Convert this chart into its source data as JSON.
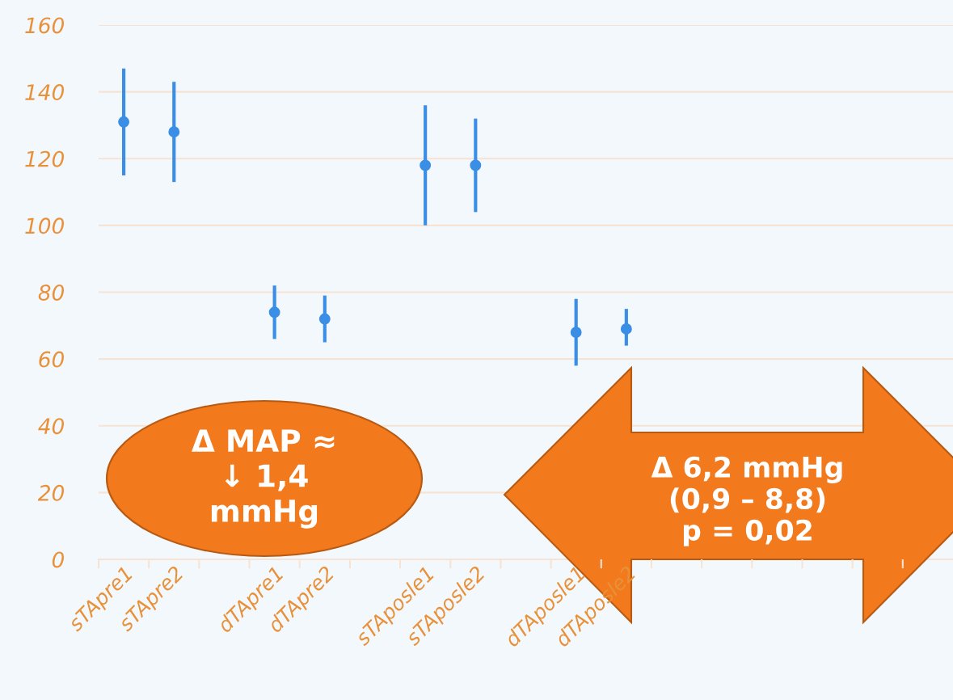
{
  "chart_data": {
    "type": "scatter",
    "categories": [
      "sTApre1",
      "sTApre2",
      null,
      "dTApre1",
      "dTApre2",
      null,
      "sTAposle1",
      "sTAposle2",
      null,
      "dTAposle1",
      "dTAposle2",
      null,
      null,
      null,
      null,
      null,
      null
    ],
    "series": [
      {
        "color": "#3a8ee6",
        "values": [
          131,
          128,
          null,
          74,
          72,
          null,
          118,
          118,
          null,
          68,
          69,
          null,
          null,
          null,
          null,
          null,
          null
        ],
        "errors": [
          [
            115,
            147
          ],
          [
            113,
            143
          ],
          null,
          [
            66,
            82
          ],
          [
            65,
            79
          ],
          null,
          [
            100,
            136
          ],
          [
            104,
            132
          ],
          null,
          [
            58,
            78
          ],
          [
            64,
            75
          ],
          null,
          null,
          null,
          null,
          null,
          null
        ]
      }
    ],
    "ylim": [
      0,
      160
    ],
    "yticks": [
      0,
      20,
      40,
      60,
      80,
      100,
      120,
      140,
      160
    ],
    "grid": "y",
    "marker": "circle",
    "annotations": [
      "Δ MAP ≈\n↓ 1,4\nmmHg",
      "Δ 6,2 mmHg\n(0,9 – 8,8)\np = 0,02"
    ]
  }
}
